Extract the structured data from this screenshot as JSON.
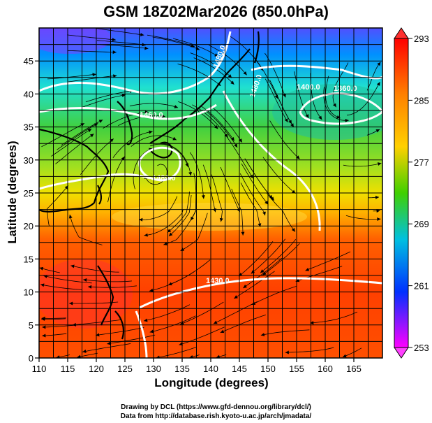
{
  "title": "GSM 18Z02Mar2026 (850.0hPa)",
  "axes": {
    "xlabel": "Longitude (degrees)",
    "ylabel": "Latitude  (degrees)",
    "xlim": [
      110,
      170
    ],
    "ylim": [
      0,
      50
    ],
    "xticks": [
      110,
      115,
      120,
      125,
      130,
      135,
      140,
      145,
      150,
      155,
      160,
      165
    ],
    "yticks": [
      0,
      5,
      10,
      15,
      20,
      25,
      30,
      35,
      40,
      45
    ],
    "grid": true
  },
  "colorbar": {
    "min": 253,
    "max": 293,
    "tick_labels": [
      "293",
      "285",
      "277",
      "269",
      "261",
      "253"
    ],
    "colors": [
      "#ff0000",
      "#ff8000",
      "#ffd000",
      "#40d000",
      "#00c0e0",
      "#0030ff",
      "#ff00ff"
    ]
  },
  "contour_labels": [
    "1480.0",
    "1400.0",
    "1360.0",
    "1480.0",
    "1460.0",
    "1480.0",
    "1430.0"
  ],
  "credits": {
    "line1": "Drawing by DCL (https://www.gfd-dennou.org/library/dcl/)",
    "line2": "Data from http://database.rish.kyoto-u.ac.jp/arch/jmadata/"
  }
}
